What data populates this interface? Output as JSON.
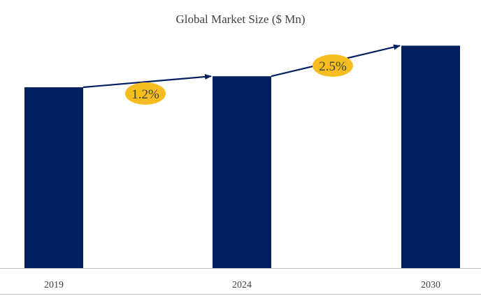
{
  "chart_data": {
    "type": "bar",
    "title": "Global Market Size ($ Mn)",
    "xlabel": "",
    "ylabel": "",
    "categories": [
      "2019",
      "2024",
      "2030"
    ],
    "values": [
      100,
      106.1,
      123.0
    ],
    "grid": false,
    "legend": "none",
    "annotations": [
      {
        "label": "1.2%",
        "from": "2019",
        "to": "2024"
      },
      {
        "label": "2.5%",
        "from": "2024",
        "to": "2030"
      }
    ],
    "colors": {
      "bar": "#002060",
      "arrow": "#002060",
      "badge": "#F5BD1F",
      "text": "#404040",
      "axis": "#BFBFBF"
    }
  }
}
